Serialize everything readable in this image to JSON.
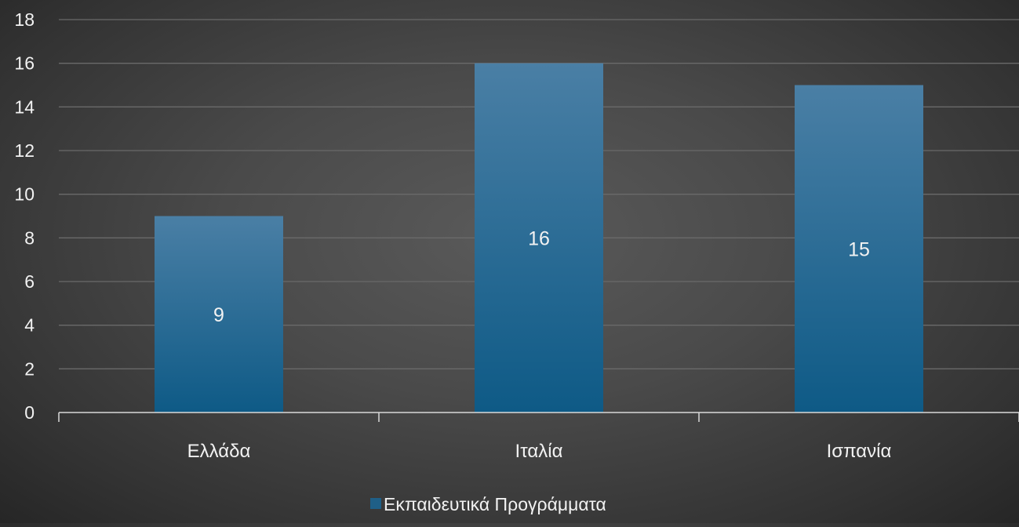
{
  "chart_data": {
    "type": "bar",
    "title": "",
    "xlabel": "",
    "ylabel": "",
    "categories": [
      "Ελλάδα",
      "Ιταλία",
      "Ισπανία"
    ],
    "series": [
      {
        "name": "Εκπαιδευτικά Προγράμματα",
        "values": [
          9,
          16,
          15
        ],
        "color": "#1f5f87"
      }
    ],
    "ylim": [
      0,
      18
    ],
    "yticks": [
      0,
      2,
      4,
      6,
      8,
      10,
      12,
      14,
      16,
      18
    ],
    "grid": true,
    "legend_position": "bottom",
    "data_labels": true
  },
  "colors": {
    "background": "#444444",
    "gridline": "#6a6a6a",
    "axis": "#d9d9d9",
    "text": "#f2f2f2",
    "bar_top": "#4a7fa5",
    "bar_bottom": "#0e5a86"
  }
}
